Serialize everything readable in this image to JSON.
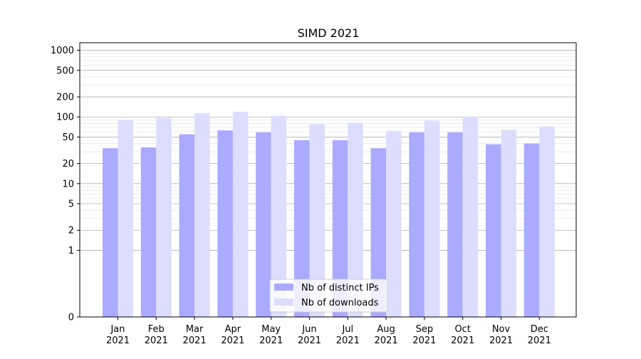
{
  "chart_data": {
    "type": "bar",
    "title": "SIMD 2021",
    "xlabel": "",
    "ylabel": "",
    "yscale": "symlog",
    "ylim": [
      0,
      1300
    ],
    "yticks": [
      0,
      1,
      2,
      5,
      10,
      20,
      50,
      100,
      200,
      500,
      1000
    ],
    "ytick_labels": [
      "0",
      "1",
      "2",
      "5",
      "10",
      "20",
      "50",
      "100",
      "200",
      "500",
      "1000"
    ],
    "grid": true,
    "legend_position": "bottom-center",
    "categories": [
      "Jan\n2021",
      "Feb\n2021",
      "Mar\n2021",
      "Apr\n2021",
      "May\n2021",
      "Jun\n2021",
      "Jul\n2021",
      "Aug\n2021",
      "Sep\n2021",
      "Oct\n2021",
      "Nov\n2021",
      "Dec\n2021"
    ],
    "series": [
      {
        "name": "Nb of distinct IPs",
        "color": "#aaaaff",
        "values": [
          34,
          35,
          55,
          63,
          59,
          45,
          45,
          34,
          59,
          59,
          39,
          40
        ]
      },
      {
        "name": "Nb of downloads",
        "color": "#ddddff",
        "values": [
          90,
          97,
          114,
          120,
          104,
          78,
          82,
          62,
          88,
          101,
          64,
          72
        ]
      }
    ]
  }
}
